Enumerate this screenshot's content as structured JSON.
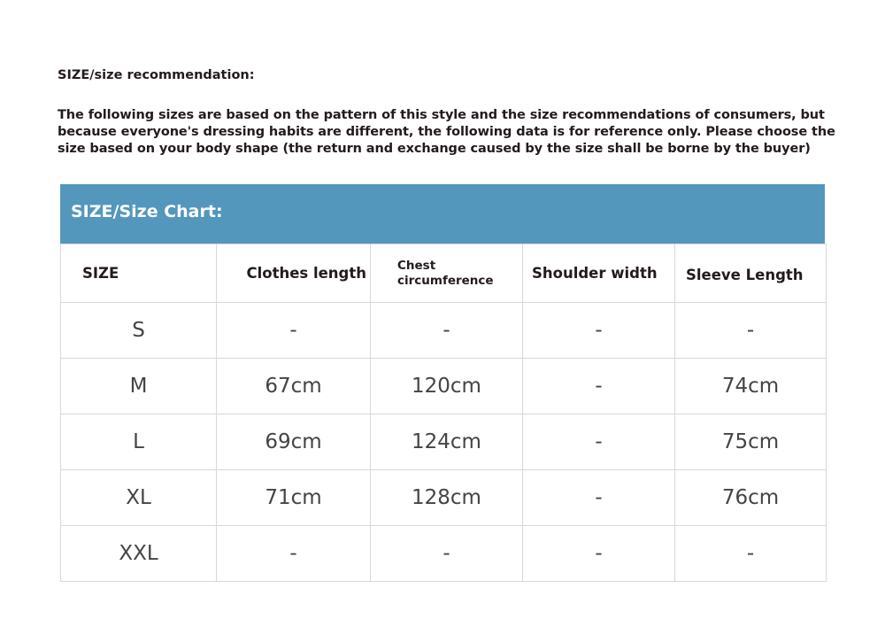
{
  "heading": "SIZE/size recommendation:",
  "intro": "The following sizes are based on the pattern of this style and the size recommendations of consumers, but because everyone's dressing habits are different, the following data is for reference only. Please choose the size based on your body shape (the return and exchange caused by the size shall be borne by the buyer)",
  "chart_title": "SIZE/Size Chart:",
  "header_color": "#5497bd",
  "columns": [
    "SIZE",
    "Clothes length",
    "Chest circumference",
    "Shoulder width",
    "Sleeve Length"
  ],
  "rows": [
    [
      "S",
      "-",
      "-",
      "-",
      "-"
    ],
    [
      "M",
      "67cm",
      "120cm",
      "-",
      "74cm"
    ],
    [
      "L",
      "69cm",
      "124cm",
      "-",
      "75cm"
    ],
    [
      "XL",
      "71cm",
      "128cm",
      "-",
      "76cm"
    ],
    [
      "XXL",
      "-",
      "-",
      "-",
      "-"
    ]
  ]
}
